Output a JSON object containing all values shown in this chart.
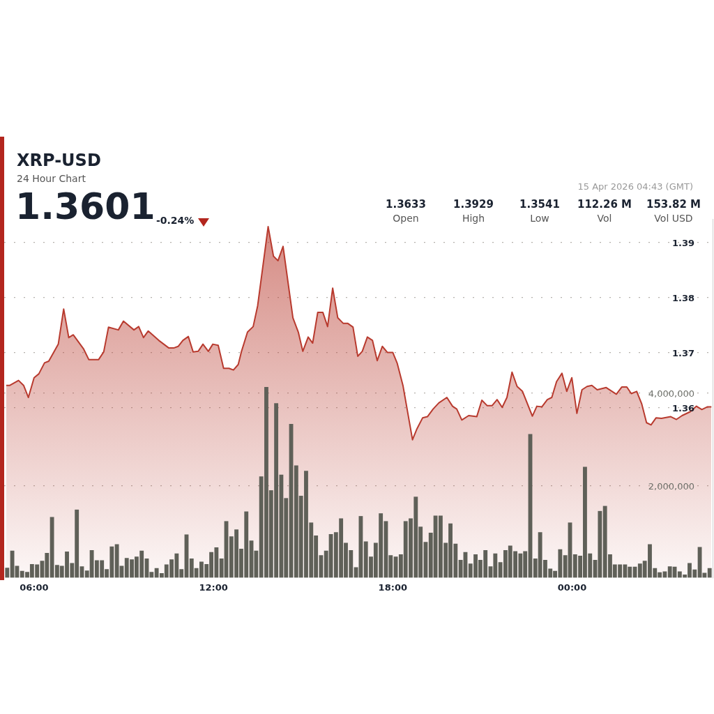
{
  "chart_data": {
    "type": "area",
    "title": "XRP-USD",
    "subtitle": "24 Hour Chart",
    "annotations": [
      "1.3601",
      "-0.24%",
      "1.3633",
      "Open",
      "1.3929",
      "High",
      "1.3541",
      "Low",
      "112.26 M",
      "Vol",
      "153.82 M",
      "Vol USD",
      "15 Apr 2026 04:43 (GMT)"
    ],
    "xlim": [
      5.0,
      28.7
    ],
    "xticks": [
      {
        "value": 6,
        "label": "06:00"
      },
      {
        "value": 12,
        "label": "12:00"
      },
      {
        "value": 18,
        "label": "18:00"
      },
      {
        "value": 24,
        "label": "00:00"
      }
    ],
    "ylim": [
      1.329,
      1.3943
    ],
    "yticks": [
      1.36,
      1.37,
      1.38,
      1.39
    ],
    "y2lim": [
      0,
      7780000
    ],
    "y2ticks": [
      {
        "value": 2000000,
        "label": "2,000,000"
      },
      {
        "value": 4000000,
        "label": "4,000,000"
      }
    ],
    "grid": "y",
    "legend": false,
    "marker": "none",
    "line_style": "solid",
    "series": [
      {
        "color": "#b83a2e",
        "x": [
          5.07,
          5.19,
          5.48,
          5.65,
          5.81,
          6.0,
          6.16,
          6.35,
          6.49,
          6.81,
          6.99,
          7.16,
          7.31,
          7.66,
          7.83,
          8.16,
          8.33,
          8.49,
          8.82,
          8.99,
          9.34,
          9.5,
          9.66,
          9.82,
          10.17,
          10.51,
          10.67,
          10.82,
          10.98,
          11.16,
          11.32,
          11.49,
          11.65,
          11.83,
          11.98,
          12.16,
          12.34,
          12.52,
          12.67,
          12.83,
          12.94,
          13.14,
          13.33,
          13.48,
          13.83,
          14.01,
          14.16,
          14.33,
          14.66,
          14.84,
          14.99,
          15.17,
          15.32,
          15.49,
          15.66,
          15.82,
          15.99,
          16.16,
          16.34,
          16.49,
          16.67,
          16.83,
          16.98,
          17.15,
          17.32,
          17.48,
          17.65,
          17.82,
          18.0,
          18.15,
          18.34,
          18.66,
          18.81,
          19.0,
          19.16,
          19.35,
          19.54,
          19.81,
          20.0,
          20.14,
          20.31,
          20.54,
          20.81,
          20.98,
          21.16,
          21.32,
          21.49,
          21.66,
          21.82,
          21.99,
          22.16,
          22.34,
          22.67,
          22.82,
          22.99,
          23.17,
          23.32,
          23.48,
          23.66,
          23.82,
          23.99,
          24.16,
          24.33,
          24.5,
          24.66,
          24.84,
          25.14,
          25.48,
          25.66,
          25.83,
          25.98,
          26.16,
          26.33,
          26.49,
          26.64,
          26.81,
          26.99,
          27.3,
          27.49,
          27.68,
          27.95,
          28.16,
          28.34,
          28.53,
          28.66
        ],
        "values": [
          1.364,
          1.364,
          1.3649,
          1.364,
          1.3618,
          1.3654,
          1.3661,
          1.3681,
          1.3684,
          1.3715,
          1.3779,
          1.3727,
          1.3732,
          1.3706,
          1.3687,
          1.3687,
          1.3701,
          1.3746,
          1.3741,
          1.3757,
          1.3741,
          1.3747,
          1.3727,
          1.3739,
          1.3722,
          1.3708,
          1.3708,
          1.3711,
          1.3722,
          1.3729,
          1.3701,
          1.3702,
          1.3715,
          1.3702,
          1.3715,
          1.3713,
          1.3671,
          1.3671,
          1.3668,
          1.3678,
          1.3702,
          1.3737,
          1.3747,
          1.3785,
          1.3929,
          1.3875,
          1.3867,
          1.3893,
          1.3763,
          1.3737,
          1.3702,
          1.3728,
          1.3717,
          1.3773,
          1.3773,
          1.3747,
          1.3817,
          1.3763,
          1.3753,
          1.3753,
          1.3746,
          1.3693,
          1.3702,
          1.3728,
          1.3722,
          1.3685,
          1.3711,
          1.37,
          1.37,
          1.368,
          1.364,
          1.3541,
          1.3561,
          1.3581,
          1.3583,
          1.3597,
          1.3608,
          1.3618,
          1.3602,
          1.3597,
          1.3577,
          1.3585,
          1.3583,
          1.3613,
          1.3603,
          1.3603,
          1.3614,
          1.36,
          1.3618,
          1.3664,
          1.3638,
          1.3629,
          1.3584,
          1.3602,
          1.3601,
          1.3614,
          1.3618,
          1.3647,
          1.3662,
          1.3629,
          1.3654,
          1.3589,
          1.3632,
          1.3638,
          1.364,
          1.3632,
          1.3636,
          1.3624,
          1.3637,
          1.3637,
          1.3625,
          1.3629,
          1.3606,
          1.3572,
          1.3568,
          1.3581,
          1.358,
          1.3583,
          1.3578,
          1.3585,
          1.3592,
          1.3602,
          1.3596,
          1.3601,
          1.3601
        ]
      },
      {
        "type": "bar",
        "axis": "y2",
        "color": "#5f6058",
        "x": [
          5.1,
          5.27,
          5.43,
          5.6,
          5.77,
          5.93,
          6.1,
          6.27,
          6.43,
          6.6,
          6.77,
          6.93,
          7.1,
          7.27,
          7.43,
          7.6,
          7.77,
          7.93,
          8.1,
          8.27,
          8.43,
          8.6,
          8.77,
          8.93,
          9.1,
          9.27,
          9.43,
          9.6,
          9.77,
          9.93,
          10.1,
          10.27,
          10.43,
          10.6,
          10.77,
          10.93,
          11.1,
          11.27,
          11.43,
          11.6,
          11.77,
          11.93,
          12.1,
          12.27,
          12.43,
          12.6,
          12.77,
          12.93,
          13.1,
          13.27,
          13.43,
          13.6,
          13.77,
          13.93,
          14.1,
          14.27,
          14.43,
          14.6,
          14.77,
          14.93,
          15.1,
          15.27,
          15.43,
          15.6,
          15.77,
          15.93,
          16.1,
          16.27,
          16.43,
          16.6,
          16.77,
          16.93,
          17.1,
          17.27,
          17.43,
          17.6,
          17.77,
          17.93,
          18.1,
          18.27,
          18.43,
          18.6,
          18.77,
          18.93,
          19.1,
          19.27,
          19.43,
          19.6,
          19.77,
          19.93,
          20.1,
          20.27,
          20.43,
          20.6,
          20.77,
          20.93,
          21.1,
          21.27,
          21.43,
          21.6,
          21.77,
          21.93,
          22.1,
          22.27,
          22.43,
          22.6,
          22.77,
          22.93,
          23.1,
          23.27,
          23.43,
          23.6,
          23.77,
          23.93,
          24.1,
          24.27,
          24.43,
          24.6,
          24.77,
          24.93,
          25.1,
          25.27,
          25.43,
          25.6,
          25.77,
          25.93,
          26.1,
          26.27,
          26.43,
          26.6,
          26.77,
          26.93,
          27.1,
          27.27,
          27.43,
          27.6,
          27.77,
          27.93,
          28.1,
          28.27,
          28.43,
          28.6
        ],
        "values": [
          210000,
          580000,
          250000,
          140000,
          120000,
          290000,
          280000,
          360000,
          530000,
          1310000,
          270000,
          250000,
          560000,
          310000,
          1470000,
          240000,
          150000,
          590000,
          370000,
          370000,
          180000,
          670000,
          720000,
          250000,
          420000,
          390000,
          450000,
          580000,
          410000,
          120000,
          200000,
          90000,
          280000,
          390000,
          520000,
          180000,
          930000,
          410000,
          200000,
          340000,
          290000,
          550000,
          650000,
          410000,
          1220000,
          890000,
          1040000,
          620000,
          1430000,
          800000,
          580000,
          2190000,
          4130000,
          1890000,
          3780000,
          2230000,
          1720000,
          3330000,
          2430000,
          1770000,
          2310000,
          1190000,
          910000,
          480000,
          580000,
          940000,
          980000,
          1280000,
          750000,
          590000,
          220000,
          1330000,
          780000,
          450000,
          750000,
          1390000,
          1220000,
          480000,
          450000,
          500000,
          1220000,
          1280000,
          1750000,
          1100000,
          770000,
          970000,
          1340000,
          1340000,
          750000,
          1170000,
          730000,
          380000,
          550000,
          300000,
          500000,
          380000,
          590000,
          240000,
          520000,
          330000,
          590000,
          690000,
          570000,
          520000,
          570000,
          3110000,
          410000,
          980000,
          380000,
          190000,
          140000,
          610000,
          480000,
          1190000,
          500000,
          470000,
          2400000,
          520000,
          380000,
          1440000,
          1550000,
          500000,
          280000,
          280000,
          280000,
          230000,
          230000,
          300000,
          360000,
          720000,
          200000,
          110000,
          130000,
          240000,
          230000,
          130000,
          60000,
          310000,
          170000,
          660000,
          100000,
          200000
        ]
      }
    ]
  }
}
